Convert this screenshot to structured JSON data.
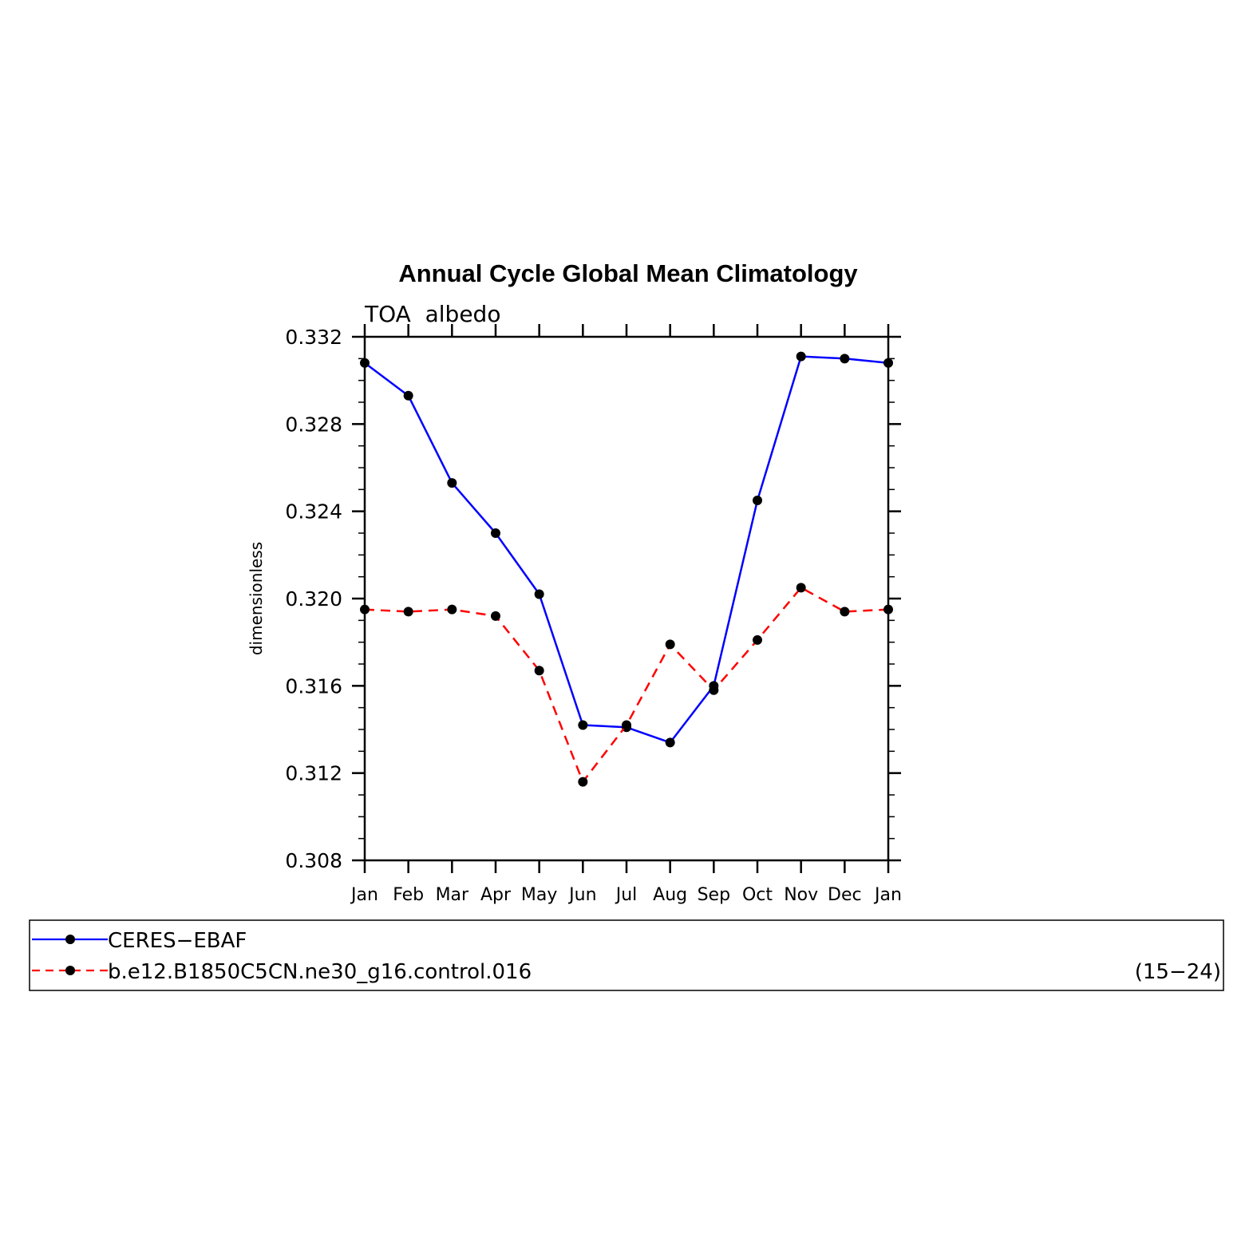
{
  "chart_data": {
    "type": "line",
    "title": "Annual Cycle Global Mean Climatology",
    "subtitle": "TOA  albedo",
    "xlabel": "",
    "ylabel": "dimensionless",
    "categories": [
      "Jan",
      "Feb",
      "Mar",
      "Apr",
      "May",
      "Jun",
      "Jul",
      "Aug",
      "Sep",
      "Oct",
      "Nov",
      "Dec",
      "Jan"
    ],
    "ylim": [
      0.308,
      0.332
    ],
    "yticks": [
      "0.308",
      "0.312",
      "0.316",
      "0.320",
      "0.324",
      "0.328",
      "0.332"
    ],
    "grid": false,
    "legend_position": "bottom",
    "legend_note": "(15−24)",
    "series": [
      {
        "name": "CERES−EBAF",
        "color": "#0000ff",
        "style": "solid",
        "values": [
          0.3308,
          0.3293,
          0.3253,
          0.323,
          0.3202,
          0.3142,
          0.3141,
          0.3134,
          0.316,
          0.3245,
          0.3311,
          0.331,
          0.3308
        ]
      },
      {
        "name": "b.e12.B1850C5CN.ne30_g16.control.016",
        "color": "#ff0000",
        "style": "dashed",
        "values": [
          0.3195,
          0.3194,
          0.3195,
          0.3192,
          0.3167,
          0.3116,
          0.3142,
          0.3179,
          0.3158,
          0.3181,
          0.3205,
          0.3194,
          0.3195
        ]
      }
    ]
  }
}
